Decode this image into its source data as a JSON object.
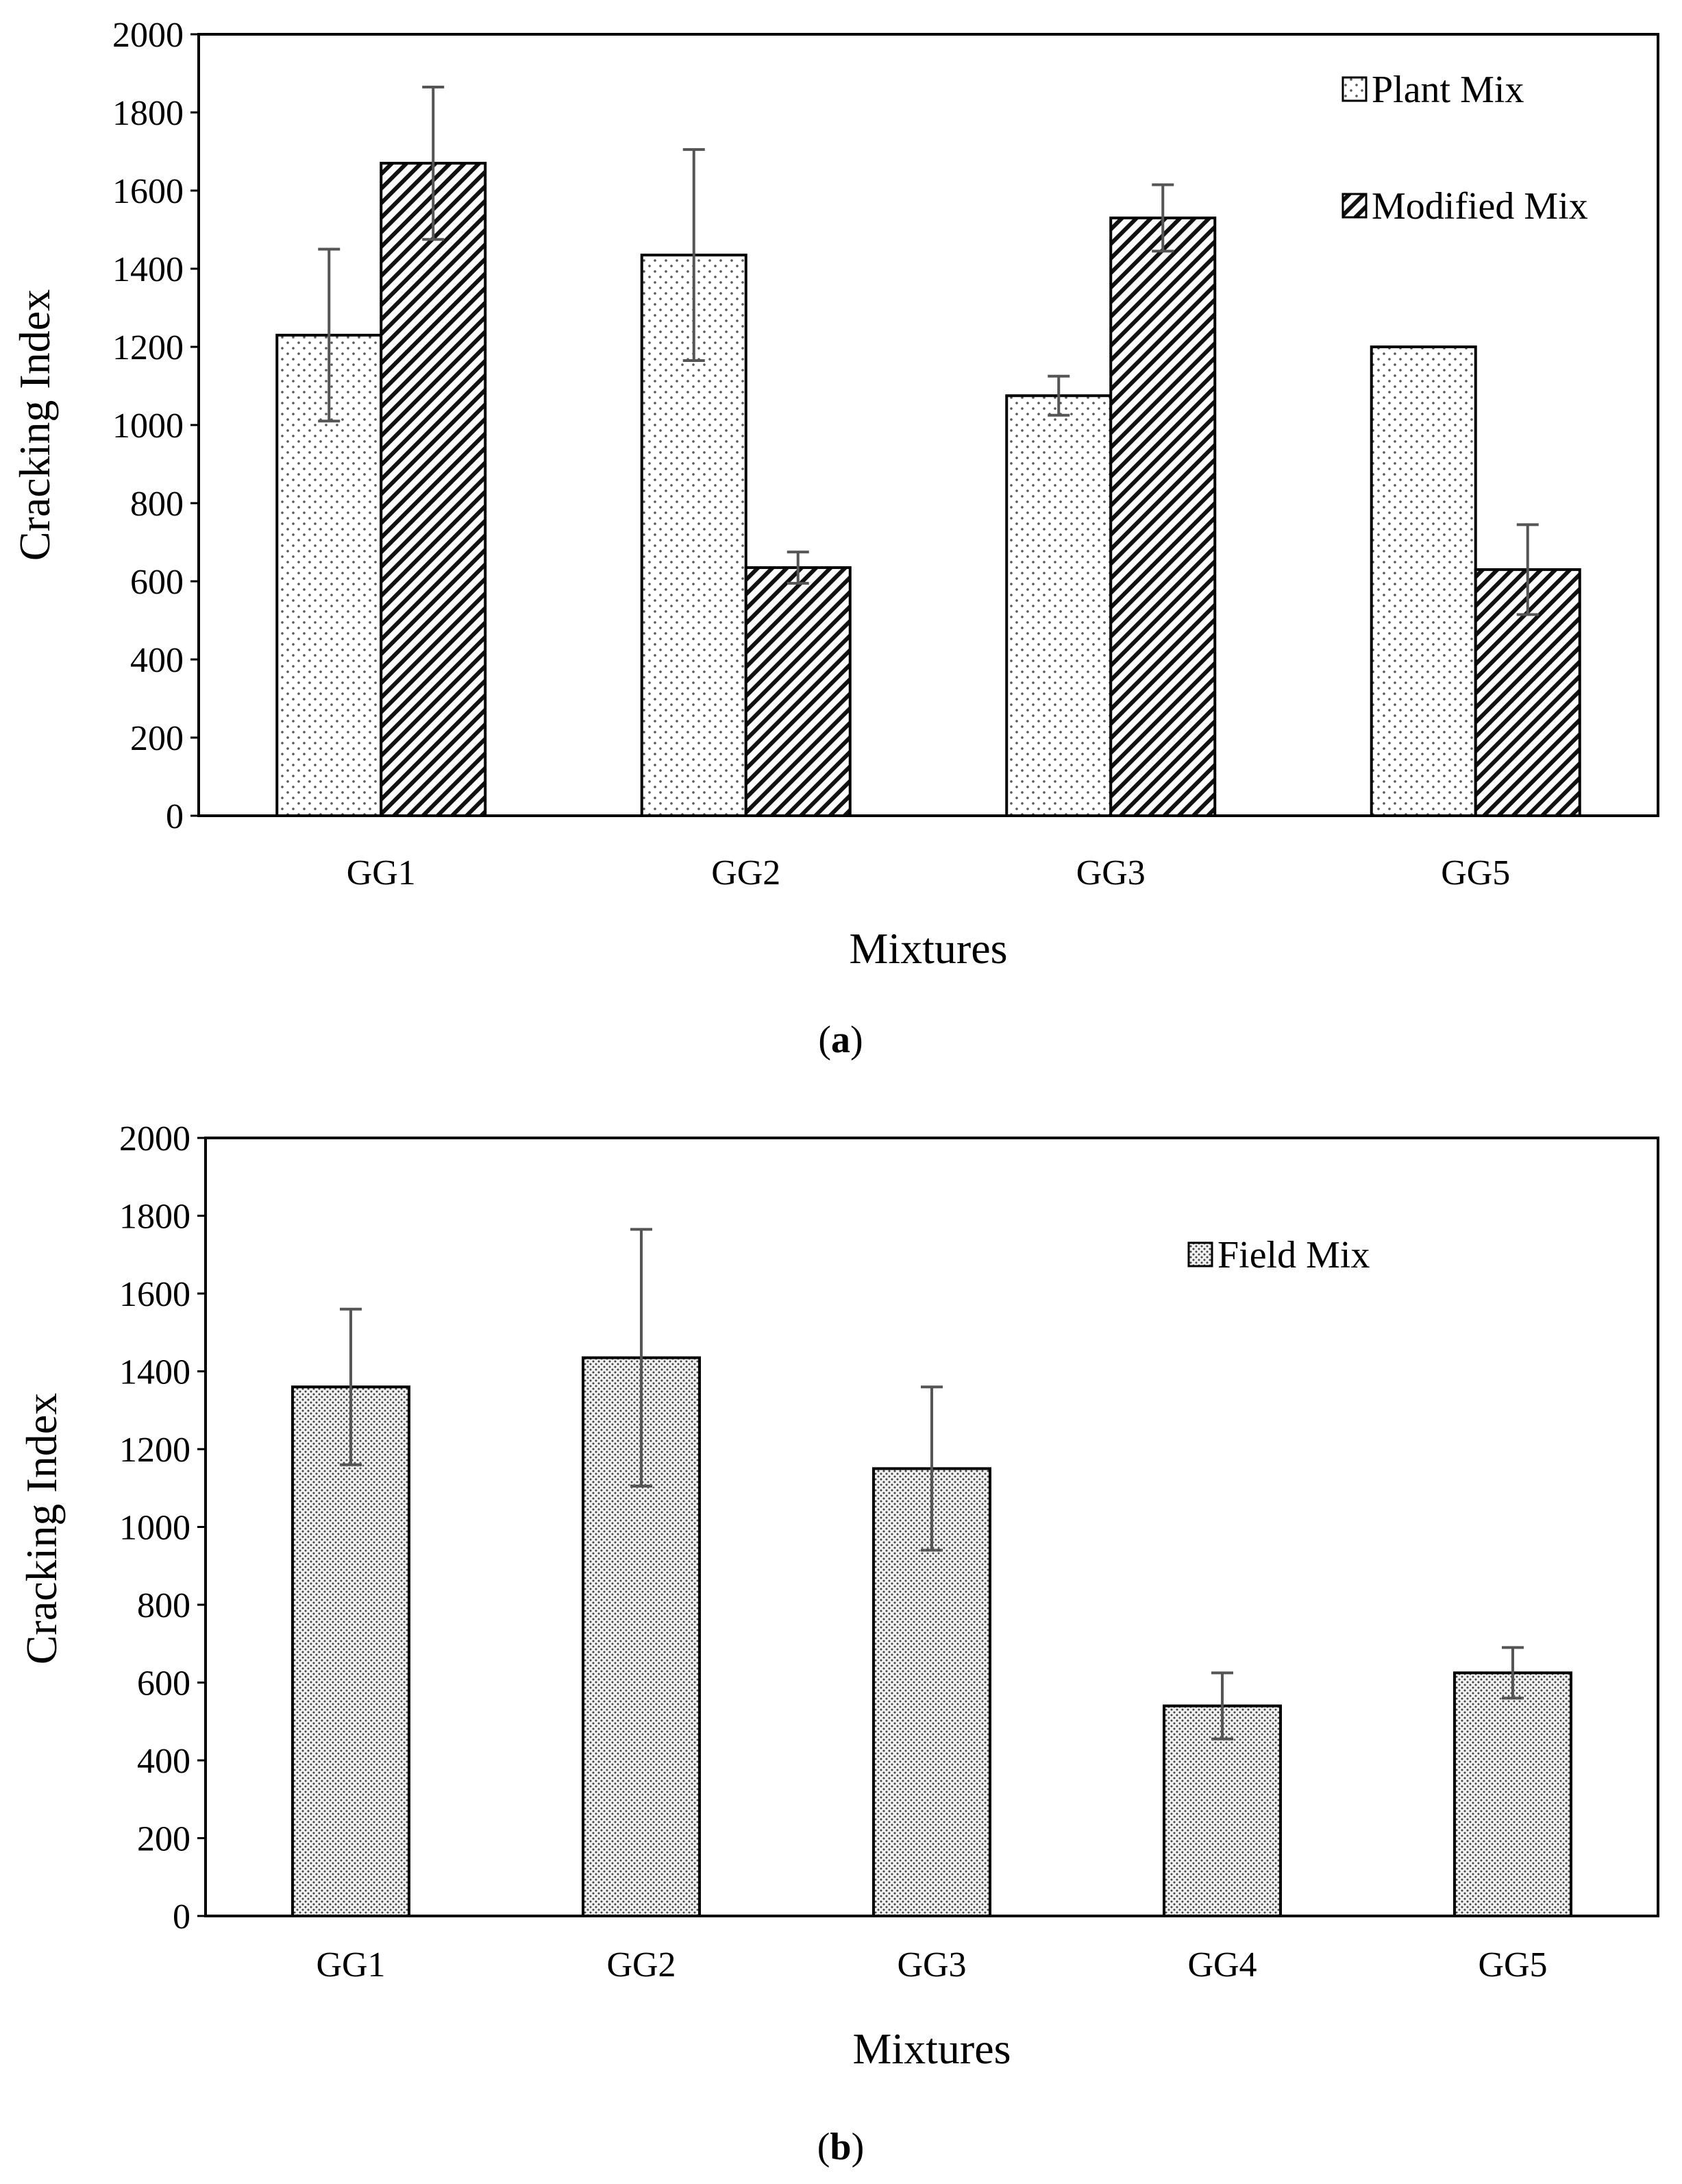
{
  "charts": [
    {
      "caption_letter": "a",
      "chart_title": "",
      "tick_labels": [
        "0",
        "200",
        "400",
        "600",
        "800",
        "1000",
        "1200",
        "1400",
        "1600",
        "1800",
        "2000"
      ],
      "legend": [
        "Plant Mix",
        "Modified Mix"
      ]
    },
    {
      "caption_letter": "b",
      "chart_title": "",
      "tick_labels": [
        "0",
        "200",
        "400",
        "600",
        "800",
        "1000",
        "1200",
        "1400",
        "1600",
        "1800",
        "2000"
      ],
      "legend": [
        "Field Mix"
      ]
    }
  ],
  "chart_data": [
    {
      "type": "bar",
      "title": "",
      "xlabel": "Mixtures",
      "ylabel": "Cracking Index",
      "ylim": [
        0,
        2000
      ],
      "ytick_step": 200,
      "grid": false,
      "legend_position": "top-right",
      "categories": [
        "GG1",
        "GG2",
        "GG3",
        "GG5"
      ],
      "series": [
        {
          "name": "Plant Mix",
          "pattern": "dots",
          "values": [
            1230,
            1435,
            1075,
            1200
          ],
          "errors": [
            220,
            270,
            50,
            null
          ]
        },
        {
          "name": "Modified Mix",
          "pattern": "hatch",
          "values": [
            1670,
            635,
            1530,
            630
          ],
          "errors": [
            195,
            40,
            85,
            115
          ]
        }
      ]
    },
    {
      "type": "bar",
      "title": "",
      "xlabel": "Mixtures",
      "ylabel": "Cracking Index",
      "ylim": [
        0,
        2000
      ],
      "ytick_step": 200,
      "grid": false,
      "legend_position": "top-right",
      "categories": [
        "GG1",
        "GG2",
        "GG3",
        "GG4",
        "GG5"
      ],
      "series": [
        {
          "name": "Field Mix",
          "pattern": "fine-dots",
          "values": [
            1360,
            1435,
            1150,
            540,
            625
          ],
          "errors": [
            200,
            330,
            210,
            85,
            65
          ]
        }
      ]
    }
  ]
}
